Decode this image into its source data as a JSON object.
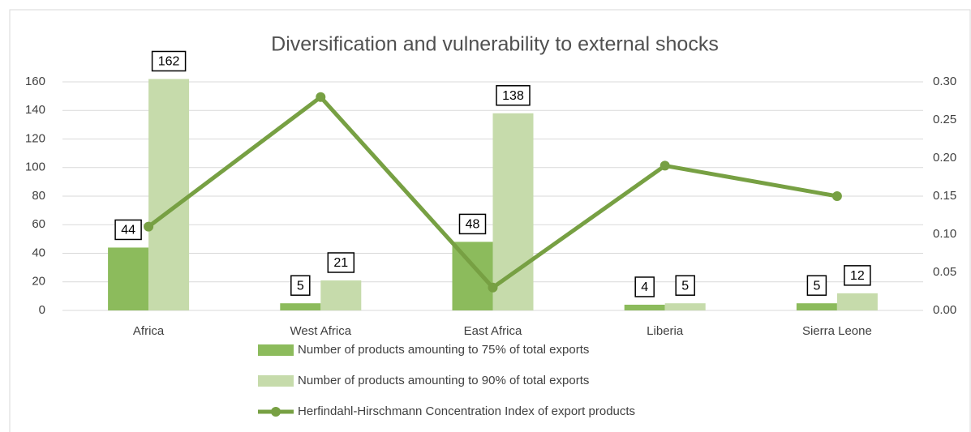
{
  "chart_data": {
    "type": "bar-line",
    "title": "Diversification and vulnerability to external shocks",
    "categories": [
      "Africa",
      "West Africa",
      "East Africa",
      "Liberia",
      "Sierra Leone"
    ],
    "series": [
      {
        "name": "Number of products amounting to 75% of total exports",
        "type": "bar",
        "color": "#8cbb5c",
        "values": [
          44,
          5,
          48,
          4,
          5
        ]
      },
      {
        "name": "Number of products amounting to 90% of total exports",
        "type": "bar",
        "color": "#c6dbab",
        "values": [
          162,
          21,
          138,
          5,
          12
        ]
      },
      {
        "name": "Herfindahl-Hirschmann Concentration Index of export products",
        "type": "line",
        "axis": "y2",
        "color": "#77a043",
        "values": [
          0.11,
          0.28,
          0.03,
          0.19,
          0.15
        ]
      }
    ],
    "ylim": [
      0,
      160
    ],
    "yticks": [
      0,
      20,
      40,
      60,
      80,
      100,
      120,
      140,
      160
    ],
    "y2lim": [
      0,
      0.3
    ],
    "y2ticks": [
      {
        "value": 0,
        "label": "0.00"
      },
      {
        "value": 0.05,
        "label": "0.05"
      },
      {
        "value": 0.1,
        "label": "0.10"
      },
      {
        "value": 0.15,
        "label": "0.15"
      },
      {
        "value": 0.2,
        "label": "0.20"
      },
      {
        "value": 0.25,
        "label": "0.25"
      },
      {
        "value": 0.3,
        "label": "0.30"
      }
    ],
    "grid": true,
    "legend": "bottom"
  }
}
